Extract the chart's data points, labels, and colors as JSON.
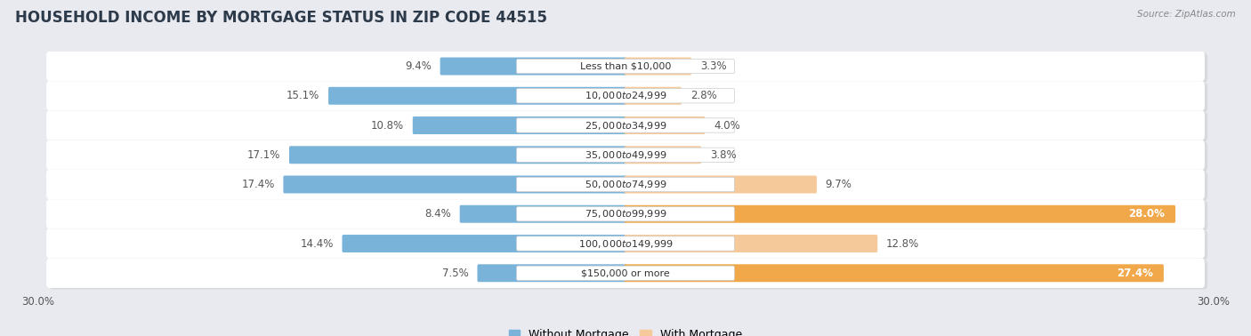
{
  "title": "HOUSEHOLD INCOME BY MORTGAGE STATUS IN ZIP CODE 44515",
  "source": "Source: ZipAtlas.com",
  "categories": [
    "Less than $10,000",
    "$10,000 to $24,999",
    "$25,000 to $34,999",
    "$35,000 to $49,999",
    "$50,000 to $74,999",
    "$75,000 to $99,999",
    "$100,000 to $149,999",
    "$150,000 or more"
  ],
  "without_mortgage": [
    9.4,
    15.1,
    10.8,
    17.1,
    17.4,
    8.4,
    14.4,
    7.5
  ],
  "with_mortgage": [
    3.3,
    2.8,
    4.0,
    3.8,
    9.7,
    28.0,
    12.8,
    27.4
  ],
  "color_without": "#7ab3d9",
  "color_with_light": "#f5c99a",
  "color_with_dark": "#f0a84a",
  "xlim": 30.0,
  "bg_color": "#e8eaf0",
  "row_bg": "#ffffff",
  "title_fontsize": 12,
  "label_fontsize": 8.5,
  "cat_fontsize": 8,
  "tick_fontsize": 8.5,
  "legend_fontsize": 9,
  "large_threshold": 15.0
}
